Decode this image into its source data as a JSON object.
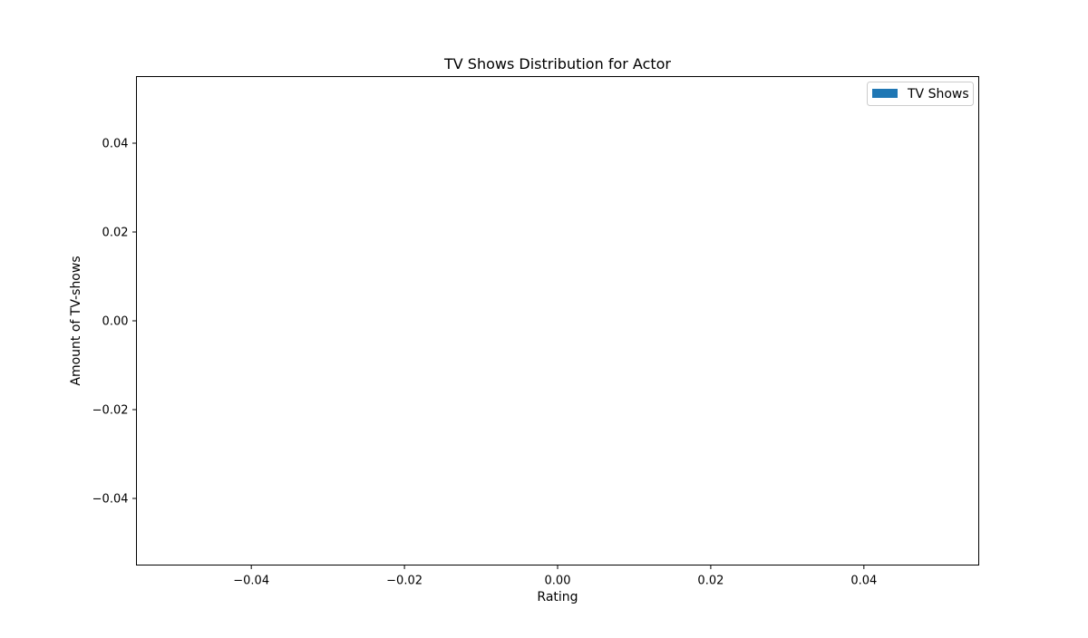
{
  "chart_data": {
    "type": "bar",
    "title": "TV Shows Distribution for Actor",
    "xlabel": "Rating",
    "ylabel": "Amount of TV-shows",
    "xlim": [
      -0.055,
      0.055
    ],
    "ylim": [
      -0.055,
      0.055
    ],
    "x_ticks": [
      -0.04,
      -0.02,
      0.0,
      0.02,
      0.04
    ],
    "x_tick_labels": [
      "−0.04",
      "−0.02",
      "0.00",
      "0.02",
      "0.04"
    ],
    "y_ticks": [
      -0.04,
      -0.02,
      0.0,
      0.02,
      0.04
    ],
    "y_tick_labels": [
      "−0.04",
      "−0.02",
      "0.00",
      "0.02",
      "0.04"
    ],
    "grid": false,
    "legend_position": "top-right",
    "categories": [],
    "series": [
      {
        "name": "TV Shows",
        "color": "#1f77b4",
        "values": []
      }
    ]
  }
}
